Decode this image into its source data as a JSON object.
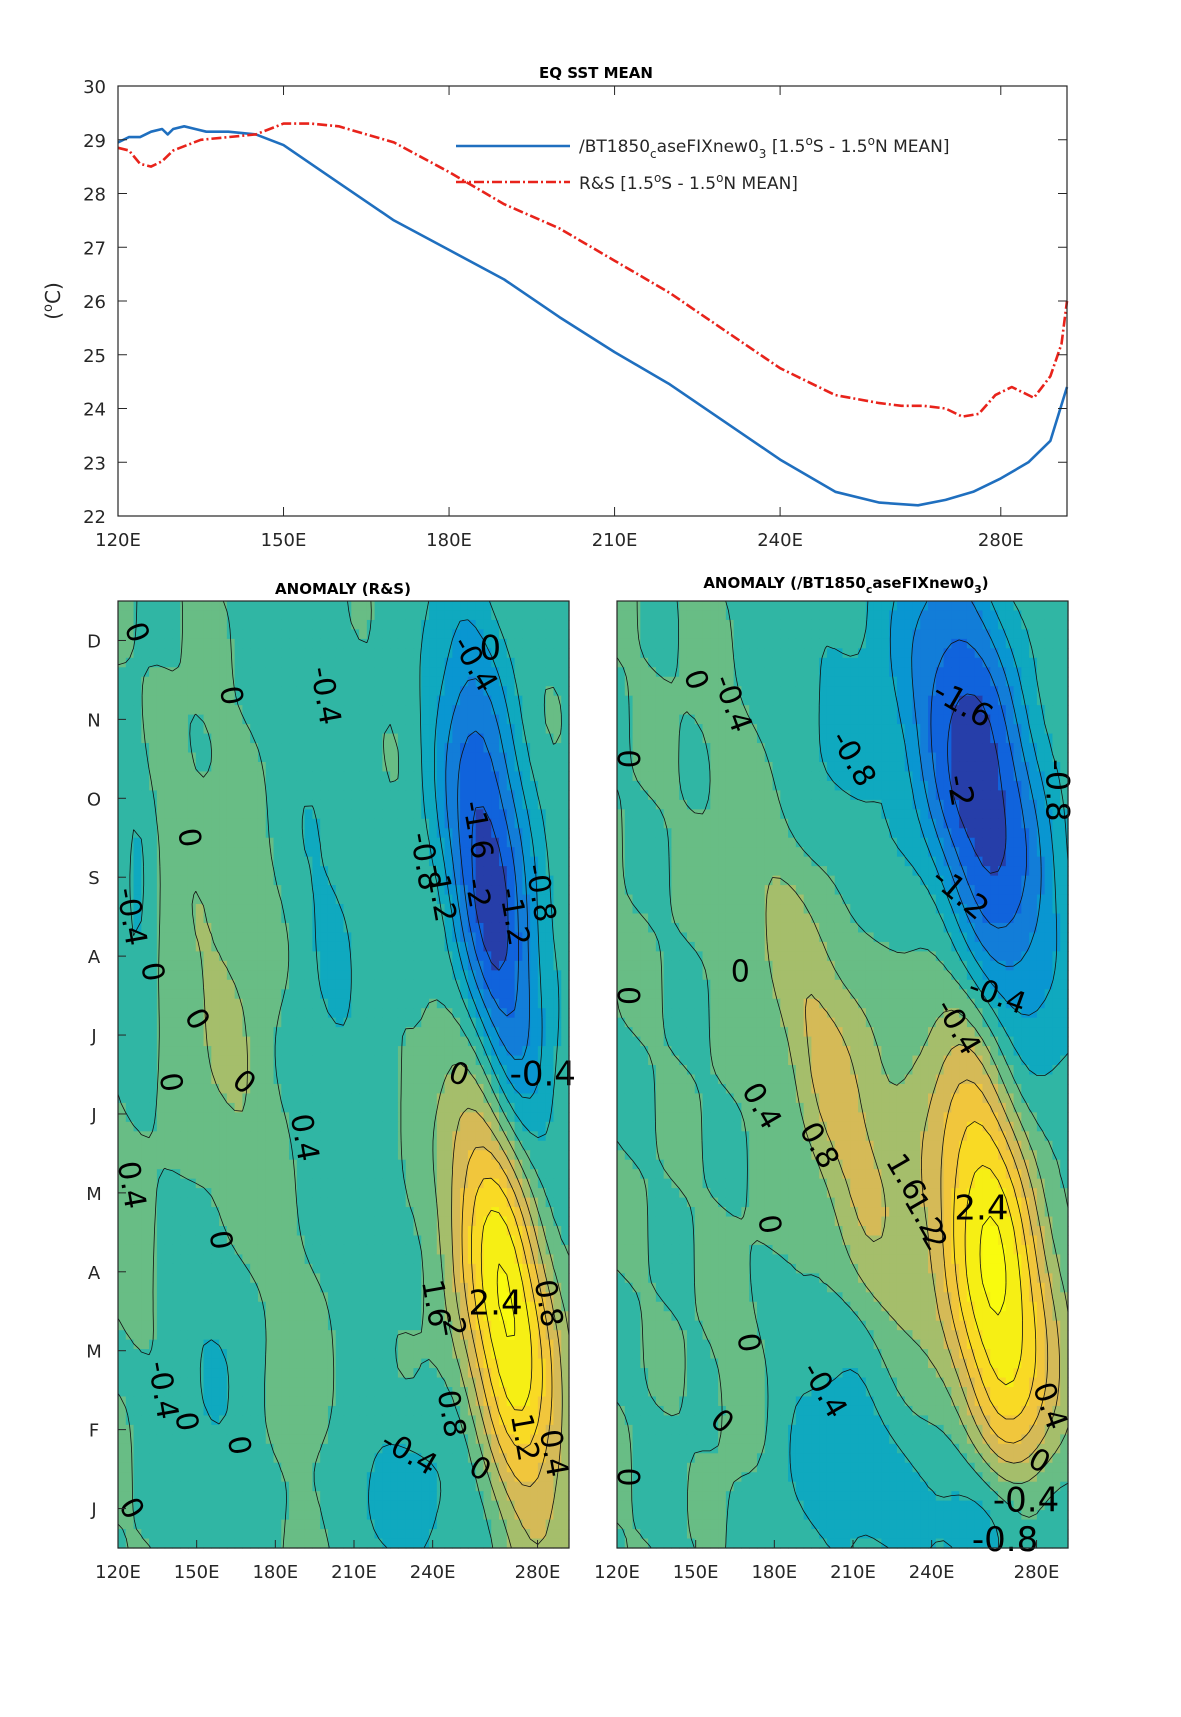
{
  "chart_data": [
    {
      "type": "line",
      "title": "EQ SST MEAN",
      "ylabel_main": "(",
      "ylabel_sup": "o",
      "ylabel_tail": "C)",
      "xlim": [
        120,
        292
      ],
      "ylim": [
        22,
        30
      ],
      "x_ticks": [
        120,
        150,
        180,
        210,
        240,
        280
      ],
      "x_tick_labels": [
        "120E",
        "150E",
        "180E",
        "210E",
        "240E",
        "280E"
      ],
      "y_ticks": [
        22,
        23,
        24,
        25,
        26,
        27,
        28,
        29,
        30
      ],
      "y_tick_labels": [
        "22",
        "23",
        "24",
        "25",
        "26",
        "27",
        "28",
        "29",
        "30"
      ],
      "legend_position": "top-right",
      "series": [
        {
          "name": "/BT1850caseFIXnew03 [1.5oS - 1.5oN MEAN]",
          "legend_parts": [
            "/BT1850",
            "c",
            "aseFIXnew0",
            "3",
            " [1.5",
            "o",
            "S - 1.5",
            "o",
            "N MEAN]"
          ],
          "color": "#1f6fbf",
          "dash": "solid",
          "x": [
            120,
            122,
            124,
            126,
            128,
            129,
            130,
            132,
            134,
            136,
            138,
            140,
            145,
            150,
            160,
            170,
            180,
            190,
            200,
            210,
            220,
            230,
            240,
            250,
            258,
            265,
            270,
            275,
            280,
            285,
            289,
            292
          ],
          "y": [
            28.95,
            29.05,
            29.05,
            29.15,
            29.2,
            29.1,
            29.2,
            29.25,
            29.2,
            29.15,
            29.15,
            29.15,
            29.1,
            28.9,
            28.2,
            27.5,
            26.95,
            26.4,
            25.7,
            25.05,
            24.45,
            23.75,
            23.05,
            22.45,
            22.25,
            22.2,
            22.3,
            22.45,
            22.7,
            23.0,
            23.4,
            24.4
          ]
        },
        {
          "name": "R&S [1.5oS - 1.5oN MEAN]",
          "legend_parts": [
            "R&S [1.5",
            "o",
            "S - 1.5",
            "o",
            "N MEAN]"
          ],
          "color": "#e8231b",
          "dash": "dashdot",
          "x": [
            120,
            122,
            124,
            126,
            128,
            130,
            135,
            140,
            145,
            150,
            155,
            160,
            170,
            180,
            190,
            200,
            210,
            220,
            230,
            240,
            250,
            258,
            262,
            266,
            270,
            273,
            276,
            279,
            282,
            286,
            289,
            291,
            292
          ],
          "y": [
            28.85,
            28.8,
            28.55,
            28.5,
            28.6,
            28.8,
            29.0,
            29.05,
            29.1,
            29.3,
            29.3,
            29.25,
            28.95,
            28.4,
            27.8,
            27.35,
            26.75,
            26.15,
            25.45,
            24.75,
            24.25,
            24.1,
            24.05,
            24.05,
            24.0,
            23.85,
            23.9,
            24.25,
            24.4,
            24.2,
            24.6,
            25.2,
            26.0
          ]
        }
      ]
    },
    {
      "type": "heatmap",
      "title": "ANOMALY (R&S)",
      "xlim": [
        120,
        292
      ],
      "x_ticks": [
        120,
        150,
        180,
        210,
        240,
        280
      ],
      "x_tick_labels": [
        "120E",
        "150E",
        "180E",
        "210E",
        "240E",
        "280E"
      ],
      "months_bottom_to_top": [
        "J",
        "F",
        "M",
        "A",
        "M",
        "J",
        "J",
        "A",
        "S",
        "O",
        "N",
        "D"
      ],
      "colormap": "parula",
      "clim": [
        -2.4,
        2.6
      ],
      "contour_interval": 0.4,
      "blobs": [
        {
          "lon": 268,
          "month": 3.2,
          "amp": 2.7,
          "sx": 14,
          "sm": 1.7,
          "tilt": -0.08
        },
        {
          "lon": 262,
          "month": 8.3,
          "amp": -2.35,
          "sx": 14,
          "sm": 2.0,
          "tilt": -0.09
        },
        {
          "lon": 176,
          "month": 3.6,
          "amp": 0.35,
          "sx": 30,
          "sm": 1.4,
          "tilt": -0.14
        },
        {
          "lon": 127,
          "month": 7.8,
          "amp": -0.5,
          "sx": 5,
          "sm": 2.0,
          "tilt": 0.0
        },
        {
          "lon": 160,
          "month": 2.5,
          "amp": -0.4,
          "sx": 16,
          "sm": 1.5,
          "tilt": 0.0
        },
        {
          "lon": 200,
          "month": 8.2,
          "amp": -0.45,
          "sx": 14,
          "sm": 2.5,
          "tilt": -0.08
        },
        {
          "lon": 230,
          "month": 0.6,
          "amp": -0.55,
          "sx": 25,
          "sm": 0.8,
          "tilt": 0.0
        },
        {
          "lon": 125,
          "month": 4.5,
          "amp": 0.4,
          "sx": 6,
          "sm": 1.2,
          "tilt": 0.0
        },
        {
          "lon": 165,
          "month": 7.2,
          "amp": 0.25,
          "sx": 15,
          "sm": 1.8,
          "tilt": 0.0
        }
      ],
      "contour_labels": [
        {
          "t": "0",
          "lon": 127,
          "month": 11.6,
          "r": 70,
          "s": 30
        },
        {
          "t": "0",
          "lon": 163,
          "month": 10.8,
          "r": 80,
          "s": 30
        },
        {
          "t": "-0.4",
          "lon": 199,
          "month": 10.8,
          "r": 80,
          "s": 30
        },
        {
          "t": "-0.4",
          "lon": 256,
          "month": 11.2,
          "r": 60,
          "s": 30
        },
        {
          "t": "0",
          "lon": 262,
          "month": 11.4,
          "r": 0,
          "s": 34
        },
        {
          "t": "0",
          "lon": 147,
          "month": 9.0,
          "r": 80,
          "s": 30
        },
        {
          "t": "-0.8",
          "lon": 237,
          "month": 8.7,
          "r": 80,
          "s": 30
        },
        {
          "t": "-1.6",
          "lon": 257,
          "month": 9.1,
          "r": 80,
          "s": 30
        },
        {
          "t": "-1.2",
          "lon": 243,
          "month": 8.3,
          "r": 80,
          "s": 30
        },
        {
          "t": "-2",
          "lon": 257,
          "month": 8.3,
          "r": 80,
          "s": 30
        },
        {
          "t": "-1.2",
          "lon": 271,
          "month": 8.0,
          "r": 80,
          "s": 30
        },
        {
          "t": "-0.8",
          "lon": 281,
          "month": 8.3,
          "r": 80,
          "s": 30
        },
        {
          "t": "-0.4",
          "lon": 125,
          "month": 8.0,
          "r": 80,
          "s": 30
        },
        {
          "t": "0",
          "lon": 133,
          "month": 7.3,
          "r": 80,
          "s": 30
        },
        {
          "t": "0",
          "lon": 150,
          "month": 6.7,
          "r": 60,
          "s": 30
        },
        {
          "t": "0",
          "lon": 140,
          "month": 5.9,
          "r": 80,
          "s": 30
        },
        {
          "t": "0",
          "lon": 168,
          "month": 5.9,
          "r": 40,
          "s": 30
        },
        {
          "t": "0",
          "lon": 250,
          "month": 6.0,
          "r": 20,
          "s": 30
        },
        {
          "t": "-0.4",
          "lon": 282,
          "month": 6.0,
          "r": 0,
          "s": 34
        },
        {
          "t": "0.4",
          "lon": 191,
          "month": 5.2,
          "r": 80,
          "s": 30
        },
        {
          "t": "0.4",
          "lon": 125,
          "month": 4.6,
          "r": 80,
          "s": 30
        },
        {
          "t": "0",
          "lon": 159,
          "month": 3.9,
          "r": 80,
          "s": 30
        },
        {
          "t": "1.6",
          "lon": 241,
          "month": 3.1,
          "r": 80,
          "s": 30
        },
        {
          "t": "2.4",
          "lon": 264,
          "month": 3.1,
          "r": 0,
          "s": 34
        },
        {
          "t": "0.8",
          "lon": 284,
          "month": 3.1,
          "r": 80,
          "s": 30
        },
        {
          "t": "2",
          "lon": 248,
          "month": 2.8,
          "r": 80,
          "s": 30
        },
        {
          "t": "-0.4",
          "lon": 137,
          "month": 2.0,
          "r": 80,
          "s": 30
        },
        {
          "t": "0.8",
          "lon": 247,
          "month": 1.7,
          "r": 80,
          "s": 30
        },
        {
          "t": "0",
          "lon": 146,
          "month": 1.6,
          "r": 80,
          "s": 30
        },
        {
          "t": "1.2",
          "lon": 275,
          "month": 1.4,
          "r": 80,
          "s": 30
        },
        {
          "t": "0.4",
          "lon": 286,
          "month": 1.2,
          "r": 80,
          "s": 30
        },
        {
          "t": "0",
          "lon": 166,
          "month": 1.3,
          "r": 80,
          "s": 30
        },
        {
          "t": "-0.4",
          "lon": 231,
          "month": 1.2,
          "r": 30,
          "s": 30
        },
        {
          "t": "0",
          "lon": 258,
          "month": 1.0,
          "r": 30,
          "s": 30
        },
        {
          "t": "0",
          "lon": 125,
          "month": 0.5,
          "r": 60,
          "s": 30
        }
      ]
    },
    {
      "type": "heatmap",
      "title_parts": [
        "ANOMALY (/BT1850",
        "c",
        "aseFIXnew0",
        "3",
        ")"
      ],
      "xlim": [
        120,
        292
      ],
      "x_ticks": [
        120,
        150,
        180,
        210,
        240,
        280
      ],
      "x_tick_labels": [
        "120E",
        "150E",
        "180E",
        "210E",
        "240E",
        "280E"
      ],
      "colormap": "parula",
      "clim": [
        -2.4,
        2.6
      ],
      "contour_interval": 0.4,
      "blobs": [
        {
          "lon": 264,
          "month": 3.5,
          "amp": 2.6,
          "sx": 16,
          "sm": 1.9,
          "tilt": -0.07
        },
        {
          "lon": 258,
          "month": 9.6,
          "amp": -2.35,
          "sx": 20,
          "sm": 1.9,
          "tilt": -0.06
        },
        {
          "lon": 205,
          "month": 5.8,
          "amp": 1.0,
          "sx": 24,
          "sm": 1.4,
          "tilt": -0.09
        },
        {
          "lon": 205,
          "month": 1.2,
          "amp": -0.6,
          "sx": 30,
          "sm": 1.2,
          "tilt": 0.0
        },
        {
          "lon": 270,
          "month": 0.4,
          "amp": -1.0,
          "sx": 22,
          "sm": 0.7,
          "tilt": 0.0
        },
        {
          "lon": 200,
          "month": 10.2,
          "amp": -0.45,
          "sx": 20,
          "sm": 1.8,
          "tilt": 0.0
        },
        {
          "lon": 170,
          "month": 1.6,
          "amp": 0.35,
          "sx": 12,
          "sm": 1.2,
          "tilt": 0.0
        }
      ],
      "contour_labels": [
        {
          "t": "0",
          "lon": 150,
          "month": 11.0,
          "r": 70,
          "s": 30
        },
        {
          "t": "-0.4",
          "lon": 164,
          "month": 10.7,
          "r": 70,
          "s": 30
        },
        {
          "t": "0",
          "lon": 124,
          "month": 10.0,
          "r": 90,
          "s": 30
        },
        {
          "t": "-0.8",
          "lon": 210,
          "month": 10.0,
          "r": 60,
          "s": 30
        },
        {
          "t": "-1.6",
          "lon": 252,
          "month": 10.7,
          "r": 30,
          "s": 32
        },
        {
          "t": "-2",
          "lon": 251,
          "month": 9.6,
          "r": 80,
          "s": 32
        },
        {
          "t": "-0.8",
          "lon": 288,
          "month": 9.6,
          "r": 90,
          "s": 32
        },
        {
          "t": "-1.2",
          "lon": 251,
          "month": 8.3,
          "r": 40,
          "s": 32
        },
        {
          "t": "0",
          "lon": 124,
          "month": 7.0,
          "r": 90,
          "s": 30
        },
        {
          "t": "0",
          "lon": 167,
          "month": 7.3,
          "r": 0,
          "s": 30
        },
        {
          "t": "-0.4",
          "lon": 265,
          "month": 7.0,
          "r": 20,
          "s": 30
        },
        {
          "t": "-0.4",
          "lon": 250,
          "month": 6.6,
          "r": 60,
          "s": 30
        },
        {
          "t": "0.4",
          "lon": 175,
          "month": 5.6,
          "r": 60,
          "s": 30
        },
        {
          "t": "0.8",
          "lon": 197,
          "month": 5.1,
          "r": 60,
          "s": 30
        },
        {
          "t": "1.6",
          "lon": 230,
          "month": 4.7,
          "r": 60,
          "s": 30
        },
        {
          "t": "1.2",
          "lon": 237,
          "month": 4.2,
          "r": 60,
          "s": 30
        },
        {
          "t": "2.4",
          "lon": 259,
          "month": 4.3,
          "r": 0,
          "s": 34
        },
        {
          "t": "2",
          "lon": 241,
          "month": 3.9,
          "r": 60,
          "s": 30
        },
        {
          "t": "0",
          "lon": 178,
          "month": 4.1,
          "r": 80,
          "s": 30
        },
        {
          "t": "0",
          "lon": 170,
          "month": 2.6,
          "r": 80,
          "s": 30
        },
        {
          "t": "-0.4",
          "lon": 199,
          "month": 2.0,
          "r": 60,
          "s": 30
        },
        {
          "t": "0",
          "lon": 160,
          "month": 1.6,
          "r": 40,
          "s": 30
        },
        {
          "t": "0.4",
          "lon": 285,
          "month": 1.8,
          "r": 70,
          "s": 30
        },
        {
          "t": "0",
          "lon": 281,
          "month": 1.1,
          "r": 30,
          "s": 30
        },
        {
          "t": "0",
          "lon": 124,
          "month": 0.9,
          "r": 90,
          "s": 30
        },
        {
          "t": "-0.4",
          "lon": 276,
          "month": 0.6,
          "r": 0,
          "s": 34
        },
        {
          "t": "-0.8",
          "lon": 268,
          "month": 0.1,
          "r": 0,
          "s": 34
        }
      ]
    }
  ]
}
